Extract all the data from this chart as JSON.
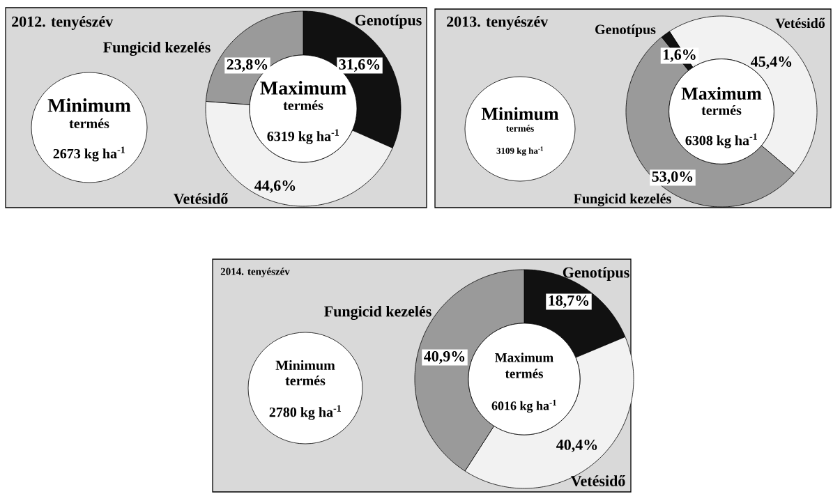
{
  "chart_data": [
    {
      "type": "donut",
      "title": "2012. tenyészév",
      "categories": [
        "Genotípus",
        "Vetésidő",
        "Fungicid kezelés"
      ],
      "values": [
        31.6,
        44.6,
        23.8
      ],
      "colors": [
        "#111111",
        "#f2f2f2",
        "#9a9a9a"
      ],
      "value_labels": [
        "31,6%",
        "44,6%",
        "23,8%"
      ],
      "annotations": [
        "Minimum",
        "termés",
        "2673 kg ha$^{-1}$",
        "Maximum",
        "termés",
        "6319 kg ha$^{-1}$"
      ]
    },
    {
      "type": "donut",
      "title": "2013. tenyészév",
      "categories": [
        "Vetésidő",
        "Fungicid kezelés",
        "Genotípus"
      ],
      "values": [
        45.4,
        53.0,
        1.6
      ],
      "colors": [
        "#f2f2f2",
        "#9a9a9a",
        "#111111"
      ],
      "value_labels": [
        "45,4%",
        "53,0%",
        "1,6%"
      ],
      "annotations": [
        "Minimum",
        "termés",
        "3109 kg ha$^{-1}$",
        "Maximum",
        "termés",
        "6308 kg ha$^{-1}$"
      ]
    },
    {
      "type": "donut",
      "title": "2014. tenyészév",
      "categories": [
        "Genotípus",
        "Vetésidő",
        "Fungicid kezelés"
      ],
      "values": [
        18.7,
        40.4,
        40.9
      ],
      "colors": [
        "#111111",
        "#f2f2f2",
        "#9a9a9a"
      ],
      "value_labels": [
        "18,7%",
        "40,4%",
        "40,9%"
      ],
      "annotations": [
        "Minimum",
        "termés",
        "2780 kg ha$^{-1}$",
        "Maximum",
        "termés",
        "6016 kg ha$^{-1}$"
      ]
    }
  ]
}
